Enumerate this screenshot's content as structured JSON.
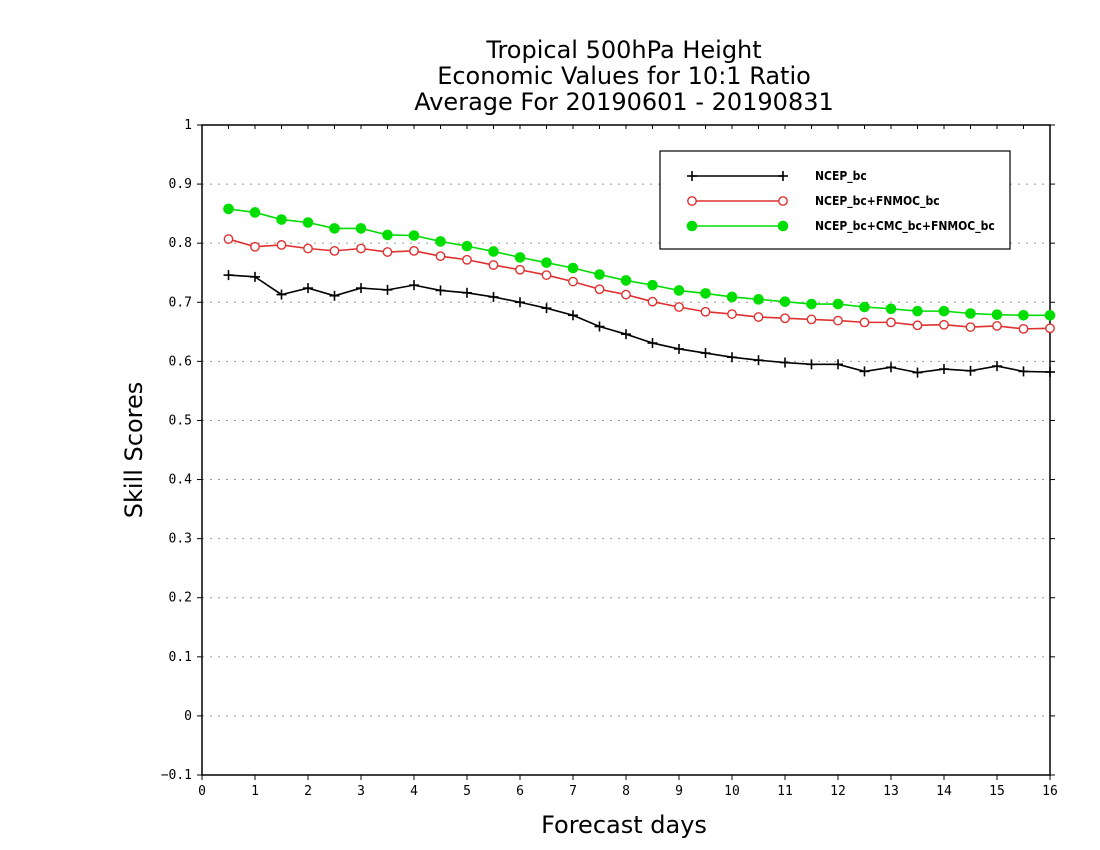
{
  "chart_data": {
    "type": "line",
    "title_lines": [
      "Tropical 500hPa Height",
      "Economic Values for 10:1 Ratio",
      "Average For 20190601 - 20190831"
    ],
    "xlabel": "Forecast days",
    "ylabel": "Skill Scores",
    "xlim": [
      0,
      16
    ],
    "ylim": [
      -0.1,
      1
    ],
    "x_ticks": [
      0,
      1,
      2,
      3,
      4,
      5,
      6,
      7,
      8,
      9,
      10,
      11,
      12,
      13,
      14,
      15,
      16
    ],
    "y_ticks": [
      -0.1,
      0,
      0.1,
      0.2,
      0.3,
      0.4,
      0.5,
      0.6,
      0.7,
      0.8,
      0.9,
      1
    ],
    "grid": "horizontal dotted",
    "legend_position": "top-right",
    "x": [
      0.5,
      1,
      1.5,
      2,
      2.5,
      3,
      3.5,
      4,
      4.5,
      5,
      5.5,
      6,
      6.5,
      7,
      7.5,
      8,
      8.5,
      9,
      9.5,
      10,
      10.5,
      11,
      11.5,
      12,
      12.5,
      13,
      13.5,
      14,
      14.5,
      15,
      15.5,
      16
    ],
    "series": [
      {
        "name": "NCEP_bc",
        "color": "#000000",
        "marker": "plus",
        "values": [
          0.746,
          0.743,
          0.713,
          0.724,
          0.711,
          0.724,
          0.721,
          0.729,
          0.72,
          0.716,
          0.709,
          0.7,
          0.69,
          0.678,
          0.659,
          0.646,
          0.631,
          0.621,
          0.614,
          0.607,
          0.602,
          0.598,
          0.595,
          0.595,
          0.583,
          0.59,
          0.581,
          0.587,
          0.584,
          0.592,
          0.583,
          0.582
        ]
      },
      {
        "name": "NCEP_bc+FNMOC_bc",
        "color": "#e03030",
        "marker": "open-circle",
        "values": [
          0.807,
          0.794,
          0.797,
          0.791,
          0.787,
          0.791,
          0.785,
          0.787,
          0.778,
          0.772,
          0.763,
          0.755,
          0.746,
          0.735,
          0.722,
          0.713,
          0.701,
          0.692,
          0.684,
          0.68,
          0.675,
          0.673,
          0.671,
          0.669,
          0.666,
          0.666,
          0.661,
          0.662,
          0.658,
          0.66,
          0.655,
          0.656
        ]
      },
      {
        "name": "NCEP_bc+CMC_bc+FNMOC_bc",
        "color": "#00dd00",
        "marker": "filled-circle",
        "values": [
          0.858,
          0.852,
          0.84,
          0.835,
          0.825,
          0.825,
          0.814,
          0.813,
          0.803,
          0.795,
          0.786,
          0.776,
          0.767,
          0.758,
          0.747,
          0.737,
          0.729,
          0.72,
          0.715,
          0.709,
          0.705,
          0.701,
          0.697,
          0.697,
          0.692,
          0.689,
          0.685,
          0.685,
          0.681,
          0.679,
          0.678,
          0.678
        ]
      }
    ]
  }
}
